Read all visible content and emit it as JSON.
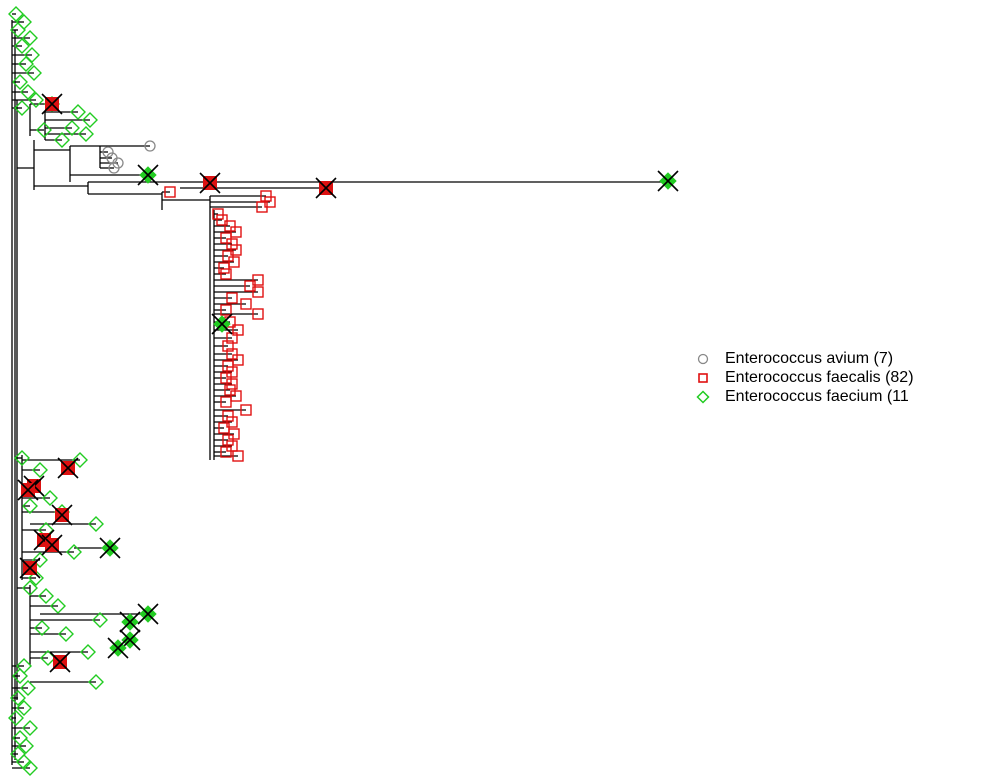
{
  "legend": {
    "position": "right",
    "items": [
      {
        "label": "Enterococcus avium (7)",
        "marker": "circle",
        "color": "#888888"
      },
      {
        "label": "Enterococcus faecalis (82)",
        "marker": "square",
        "color": "#e01010"
      },
      {
        "label": "Enterococcus faecium (11",
        "marker": "diamond",
        "color": "#22cc22"
      }
    ]
  },
  "colors": {
    "branch": "#000000",
    "avium": "#888888",
    "faecalis": "#e01010",
    "faecium": "#22cc22",
    "highlight_fill": "#dd1111",
    "highlight_cross": "#000000"
  }
}
